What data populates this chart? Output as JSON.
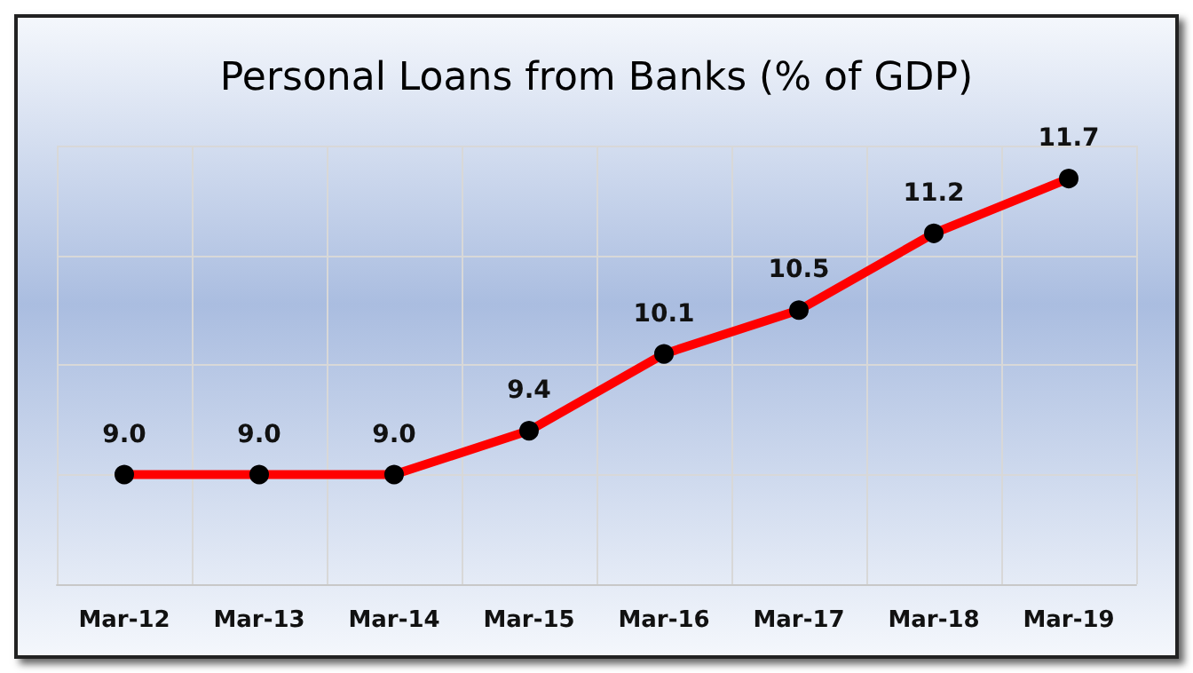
{
  "chart_data": {
    "type": "line",
    "title": "Personal Loans from Banks (% of GDP)",
    "categories": [
      "Mar-12",
      "Mar-13",
      "Mar-14",
      "Mar-15",
      "Mar-16",
      "Mar-17",
      "Mar-18",
      "Mar-19"
    ],
    "series": [
      {
        "color": "#ff0000",
        "values": [
          9.0,
          9.0,
          9.0,
          9.4,
          10.1,
          10.5,
          11.2,
          11.7
        ],
        "value_labels": [
          "9.0",
          "9.0",
          "9.0",
          "9.4",
          "10.1",
          "10.5",
          "11.2",
          "11.7"
        ]
      }
    ],
    "ylim": [
      8,
      12
    ],
    "yticks": [
      {
        "value": 8,
        "label": null
      },
      {
        "value": 9,
        "label": null
      },
      {
        "value": 10,
        "label": null
      },
      {
        "value": 11,
        "label": null
      },
      {
        "value": 12,
        "label": null
      }
    ],
    "tick_labels": "x",
    "grid": true,
    "marker": "circle",
    "line_style": "solid"
  }
}
